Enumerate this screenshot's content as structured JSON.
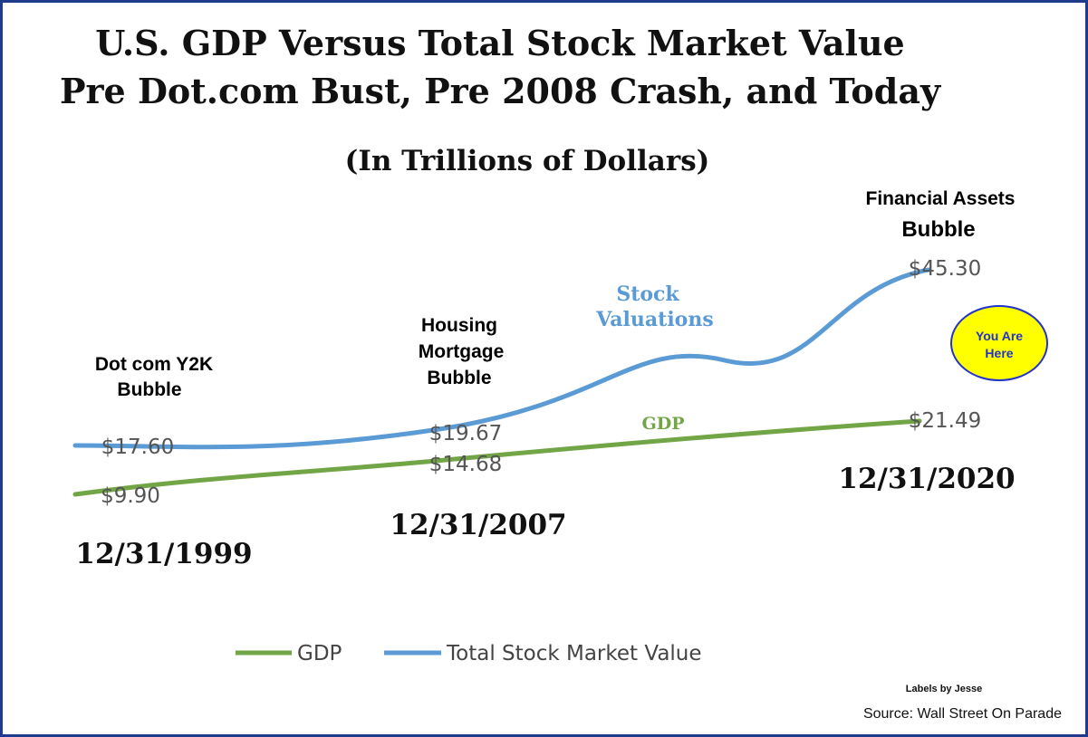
{
  "chart_data": {
    "type": "line",
    "title": "U.S. GDP Versus Total Stock Market Value",
    "subtitle": "Pre Dot.com Bust, Pre 2008 Crash, and Today",
    "units_label": "(In Trillions of Dollars)",
    "categories": [
      "12/31/1999",
      "12/31/2007",
      "12/31/2020"
    ],
    "series": [
      {
        "name": "GDP",
        "color": "#72a545",
        "values": [
          9.9,
          14.68,
          21.49
        ],
        "labels": [
          "$9.90",
          "$14.68",
          "$21.49"
        ]
      },
      {
        "name": "Total Stock Market Value",
        "color": "#5b9bd5",
        "values": [
          17.6,
          19.67,
          45.3
        ],
        "labels": [
          "$17.60",
          "$19.67",
          "$45.30"
        ]
      }
    ],
    "annotations": {
      "dotcom_line1": "Dot com Y2K",
      "dotcom_line2": "Bubble",
      "housing_line1": "Housing",
      "housing_line2": "Mortgage",
      "housing_line3": "Bubble",
      "financial_line1": "Financial Assets",
      "financial_line2": "Bubble",
      "stock_line1": "Stock",
      "stock_line2": "Valuations",
      "gdp_label": "GDP",
      "you_are_line1": "You Are",
      "you_are_line2": "Here"
    },
    "legend": [
      "GDP",
      "Total Stock Market Value"
    ],
    "legend_position": "bottom",
    "xlabel": "",
    "ylabel": "",
    "grid": false
  },
  "footer": {
    "labels_by": "Labels by Jesse",
    "source": "Source: Wall Street On Parade"
  },
  "colors": {
    "border": "#1f3b8c",
    "stock_text": "#5b9bd5",
    "gdp_text": "#72a545",
    "badge_fill": "#ffff00",
    "badge_stroke": "#2233cc",
    "badge_text": "#2233cc"
  }
}
